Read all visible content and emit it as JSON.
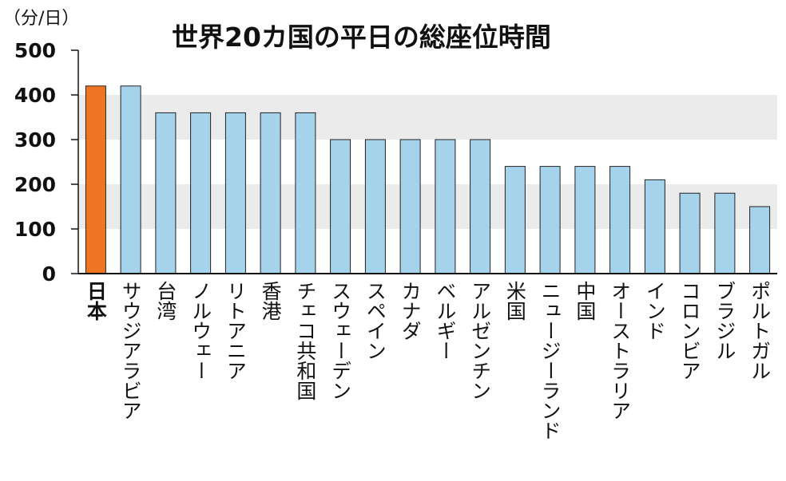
{
  "chart_data": {
    "type": "bar",
    "title": "世界20カ国の平日の総座位時間",
    "unit_label": "（分/日）",
    "ylim": [
      0,
      500
    ],
    "yticks": [
      0,
      100,
      200,
      300,
      400,
      500
    ],
    "grid": "alternating bands",
    "categories": [
      "日本",
      "サウジアラビア",
      "台湾",
      "ノルウェー",
      "リトアニア",
      "香港",
      "チェコ共和国",
      "スウェーデン",
      "スペイン",
      "カナダ",
      "ベルギー",
      "アルゼンチン",
      "米国",
      "ニュージーランド",
      "中国",
      "オーストラリア",
      "インド",
      "コロンビア",
      "ブラジル",
      "ポルトガル"
    ],
    "values": [
      420,
      420,
      360,
      360,
      360,
      360,
      360,
      300,
      300,
      300,
      300,
      300,
      240,
      240,
      240,
      240,
      210,
      180,
      180,
      150
    ],
    "highlight_index": 0,
    "colors": {
      "highlight": "#EE7623",
      "bar": "#A6D3EC",
      "band": "#EBEBEB",
      "axis": "#111111"
    }
  }
}
